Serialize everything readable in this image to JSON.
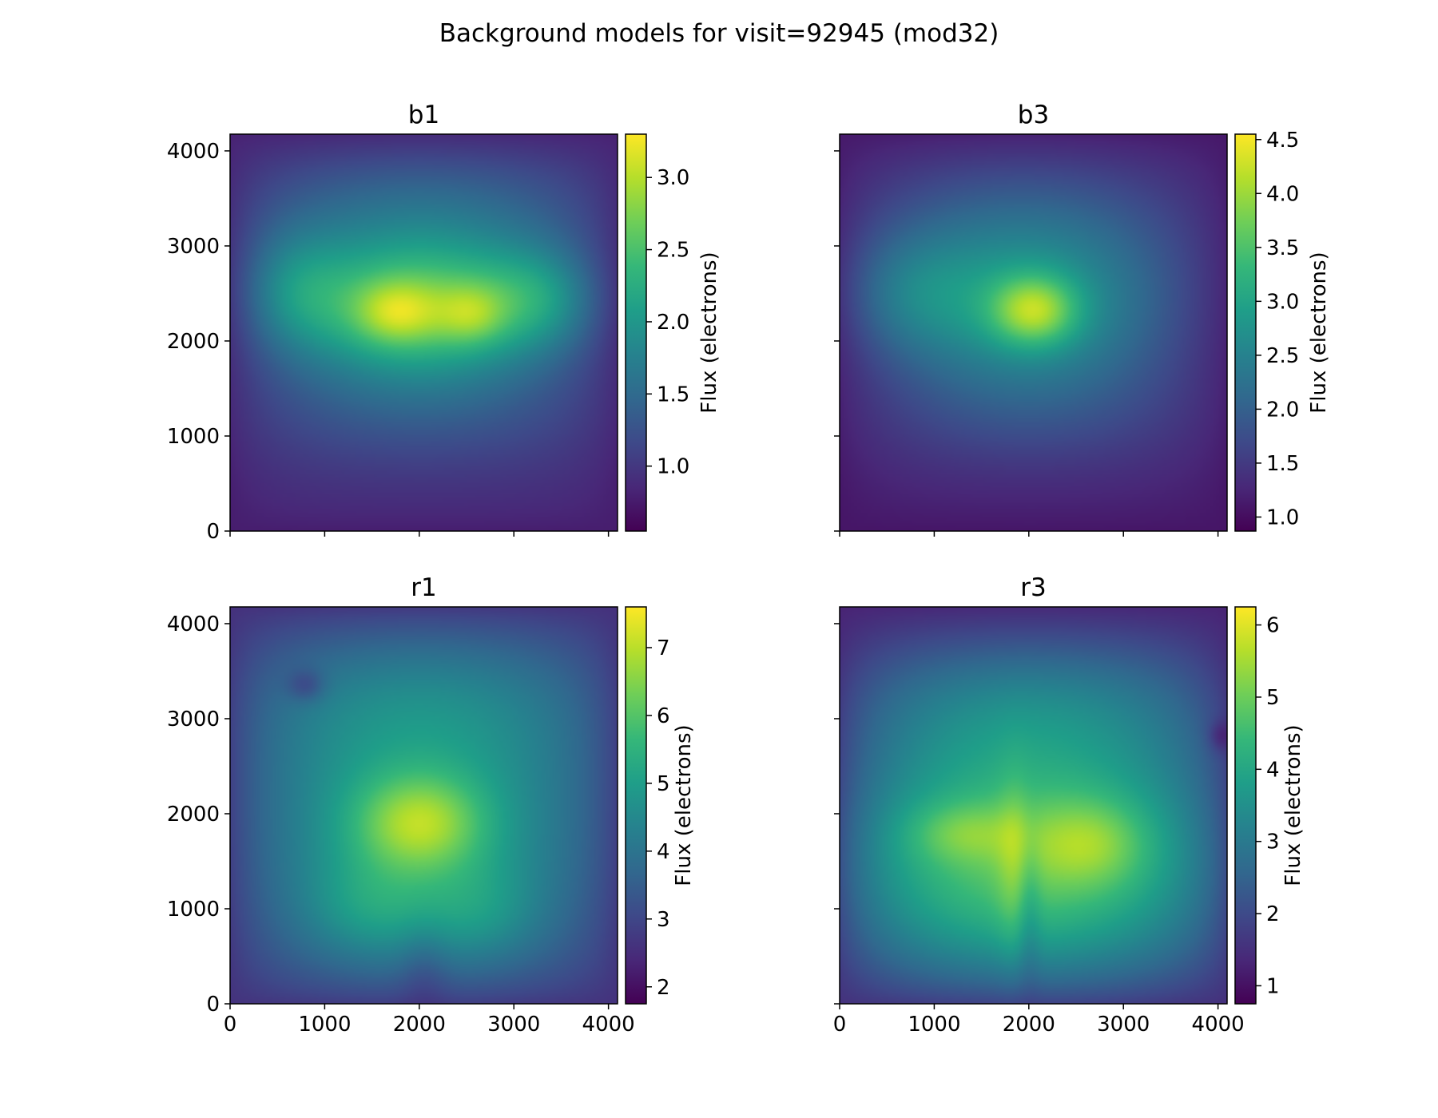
{
  "title": "Background models for visit=92945 (mod32)",
  "colormap": [
    "#440154",
    "#482878",
    "#3e4989",
    "#31688e",
    "#26828e",
    "#1f9e89",
    "#35b779",
    "#6ece58",
    "#b5de2b",
    "#fde725"
  ],
  "chart_data": [
    {
      "type": "heatmap",
      "title": "b1",
      "xlim": [
        0,
        4096
      ],
      "ylim": [
        0,
        4176
      ],
      "xticks": [
        "0",
        "1000",
        "2000",
        "3000",
        "4000"
      ],
      "yticks": [
        "0",
        "1000",
        "2000",
        "3000",
        "4000"
      ],
      "show_xticklabels": false,
      "show_yticklabels": true,
      "colorbar": {
        "label": "Flux (electrons)",
        "range": [
          0.55,
          3.3
        ],
        "ticks": [
          "1.0",
          "1.5",
          "2.0",
          "2.5",
          "3.0"
        ]
      },
      "field": {
        "base": 0.95,
        "blobs": [
          {
            "x": 2000,
            "y": 2350,
            "sx": 1000,
            "sy": 520,
            "a": 1.6
          },
          {
            "x": 1750,
            "y": 2300,
            "sx": 300,
            "sy": 230,
            "a": 0.6
          },
          {
            "x": 2550,
            "y": 2280,
            "sx": 250,
            "sy": 220,
            "a": 0.5
          },
          {
            "x": 3300,
            "y": 2450,
            "sx": 450,
            "sy": 380,
            "a": 0.6
          },
          {
            "x": 650,
            "y": 2550,
            "sx": 420,
            "sy": 450,
            "a": 0.55
          },
          {
            "x": 2000,
            "y": 3400,
            "sx": 1500,
            "sy": 550,
            "a": 0.55
          },
          {
            "x": 2000,
            "y": 1350,
            "sx": 1500,
            "sy": 500,
            "a": 0.35
          }
        ]
      }
    },
    {
      "type": "heatmap",
      "title": "b3",
      "xlim": [
        0,
        4096
      ],
      "ylim": [
        0,
        4176
      ],
      "xticks": [
        "0",
        "1000",
        "2000",
        "3000",
        "4000"
      ],
      "yticks": [
        "0",
        "1000",
        "2000",
        "3000",
        "4000"
      ],
      "show_xticklabels": false,
      "show_yticklabels": false,
      "colorbar": {
        "label": "Flux (electrons)",
        "range": [
          0.87,
          4.55
        ],
        "ticks": [
          "1.0",
          "1.5",
          "2.0",
          "2.5",
          "3.0",
          "3.5",
          "4.0",
          "4.5"
        ]
      },
      "field": {
        "base": 1.25,
        "blobs": [
          {
            "x": 2000,
            "y": 2300,
            "sx": 1100,
            "sy": 680,
            "a": 1.4
          },
          {
            "x": 2050,
            "y": 2320,
            "sx": 320,
            "sy": 260,
            "a": 1.4
          },
          {
            "x": 700,
            "y": 2500,
            "sx": 550,
            "sy": 450,
            "a": 0.6
          },
          {
            "x": 1900,
            "y": 3300,
            "sx": 1400,
            "sy": 650,
            "a": 0.55
          },
          {
            "x": 2000,
            "y": 1200,
            "sx": 1500,
            "sy": 500,
            "a": 0.3
          }
        ]
      }
    },
    {
      "type": "heatmap",
      "title": "r1",
      "xlim": [
        0,
        4096
      ],
      "ylim": [
        0,
        4176
      ],
      "xticks": [
        "0",
        "1000",
        "2000",
        "3000",
        "4000"
      ],
      "yticks": [
        "0",
        "1000",
        "2000",
        "3000",
        "4000"
      ],
      "show_xticklabels": true,
      "show_yticklabels": true,
      "colorbar": {
        "label": "Flux (electrons)",
        "range": [
          1.75,
          7.6
        ],
        "ticks": [
          "2",
          "3",
          "4",
          "5",
          "6",
          "7"
        ]
      },
      "field": {
        "base": 3.1,
        "blobs": [
          {
            "x": 2000,
            "y": 1800,
            "sx": 1400,
            "sy": 1200,
            "a": 1.9
          },
          {
            "x": 2000,
            "y": 1900,
            "sx": 480,
            "sy": 360,
            "a": 2.0
          },
          {
            "x": 1500,
            "y": 1000,
            "sx": 500,
            "sy": 380,
            "a": 0.8
          },
          {
            "x": 2650,
            "y": 950,
            "sx": 450,
            "sy": 380,
            "a": 0.7
          },
          {
            "x": 2000,
            "y": 3200,
            "sx": 1500,
            "sy": 600,
            "a": 0.7
          },
          {
            "x": 800,
            "y": 3350,
            "sx": 140,
            "sy": 120,
            "a": -0.9
          },
          {
            "x": 2050,
            "y": 300,
            "sx": 180,
            "sy": 350,
            "a": -0.5
          }
        ]
      }
    },
    {
      "type": "heatmap",
      "title": "r3",
      "xlim": [
        0,
        4096
      ],
      "ylim": [
        0,
        4176
      ],
      "xticks": [
        "0",
        "1000",
        "2000",
        "3000",
        "4000"
      ],
      "yticks": [
        "0",
        "1000",
        "2000",
        "3000",
        "4000"
      ],
      "show_xticklabels": true,
      "show_yticklabels": false,
      "colorbar": {
        "label": "Flux (electrons)",
        "range": [
          0.75,
          6.25
        ],
        "ticks": [
          "1",
          "2",
          "3",
          "4",
          "5",
          "6"
        ]
      },
      "field": {
        "base": 1.6,
        "blobs": [
          {
            "x": 2000,
            "y": 1500,
            "sx": 1700,
            "sy": 1050,
            "a": 3.3
          },
          {
            "x": 1300,
            "y": 1800,
            "sx": 420,
            "sy": 220,
            "a": 0.8
          },
          {
            "x": 2650,
            "y": 1700,
            "sx": 420,
            "sy": 320,
            "a": 1.0
          },
          {
            "x": 1850,
            "y": 1400,
            "sx": 130,
            "sy": 750,
            "a": 0.5
          },
          {
            "x": 2000,
            "y": 1000,
            "sx": 90,
            "sy": 600,
            "a": -0.6
          },
          {
            "x": 2000,
            "y": 3200,
            "sx": 1600,
            "sy": 550,
            "a": 1.0
          },
          {
            "x": 4040,
            "y": 2820,
            "sx": 90,
            "sy": 110,
            "a": -1.0
          }
        ]
      }
    }
  ]
}
